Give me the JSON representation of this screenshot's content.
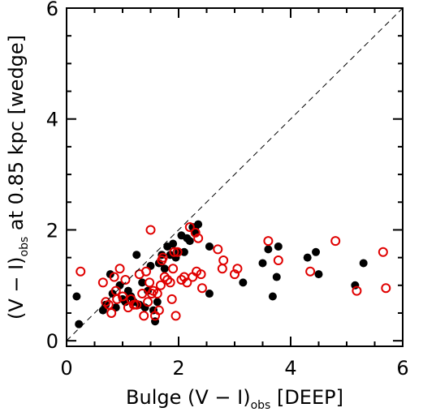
{
  "chart_data": {
    "type": "scatter",
    "xlabel": {
      "pre": "Bulge  (V − I)",
      "sub": "obs",
      "post": "   [DEEP]"
    },
    "ylabel": {
      "pre": "(V − I)",
      "sub": "obs",
      "post": " at 0.85 kpc  [wedge]"
    },
    "xlim": [
      0,
      6
    ],
    "ylim": [
      -0.1,
      6
    ],
    "xticks": [
      0,
      2,
      4,
      6
    ],
    "yticks": [
      0,
      2,
      4,
      6
    ],
    "xtick_labels": [
      "0",
      "2",
      "4",
      "6"
    ],
    "ytick_labels": [
      "0",
      "2",
      "4",
      "6"
    ],
    "reference_line": {
      "style": "dashed",
      "color": "#000000",
      "from": [
        0,
        0
      ],
      "to": [
        6,
        6
      ]
    },
    "grid": false,
    "series": [
      {
        "marker": "filled-circle",
        "color": "#000000",
        "points": [
          [
            0.18,
            0.8
          ],
          [
            0.22,
            0.3
          ],
          [
            0.65,
            0.55
          ],
          [
            0.7,
            0.65
          ],
          [
            0.78,
            1.2
          ],
          [
            0.82,
            0.85
          ],
          [
            0.88,
            0.6
          ],
          [
            0.95,
            1.0
          ],
          [
            1.0,
            0.75
          ],
          [
            1.05,
            0.7
          ],
          [
            1.1,
            0.9
          ],
          [
            1.15,
            0.8
          ],
          [
            1.2,
            0.7
          ],
          [
            1.25,
            1.55
          ],
          [
            1.3,
            0.65
          ],
          [
            1.35,
            1.05
          ],
          [
            1.4,
            0.6
          ],
          [
            1.45,
            0.9
          ],
          [
            1.5,
            1.35
          ],
          [
            1.55,
            0.55
          ],
          [
            1.58,
            0.35
          ],
          [
            1.62,
            0.7
          ],
          [
            1.65,
            1.4
          ],
          [
            1.7,
            1.55
          ],
          [
            1.75,
            1.3
          ],
          [
            1.8,
            1.7
          ],
          [
            1.85,
            1.55
          ],
          [
            1.9,
            1.75
          ],
          [
            1.95,
            1.5
          ],
          [
            2.0,
            1.6
          ],
          [
            2.05,
            1.9
          ],
          [
            2.1,
            1.6
          ],
          [
            2.15,
            1.85
          ],
          [
            2.2,
            1.8
          ],
          [
            2.25,
            2.05
          ],
          [
            2.3,
            2.05
          ],
          [
            2.35,
            2.1
          ],
          [
            2.3,
            1.95
          ],
          [
            2.55,
            1.7
          ],
          [
            2.55,
            0.85
          ],
          [
            3.15,
            1.05
          ],
          [
            3.5,
            1.4
          ],
          [
            3.6,
            1.65
          ],
          [
            3.68,
            0.8
          ],
          [
            3.75,
            1.15
          ],
          [
            3.78,
            1.7
          ],
          [
            4.3,
            1.5
          ],
          [
            4.45,
            1.6
          ],
          [
            4.5,
            1.2
          ],
          [
            5.15,
            1.0
          ],
          [
            5.3,
            1.4
          ]
        ]
      },
      {
        "marker": "open-circle",
        "color": "#e00000",
        "points": [
          [
            0.25,
            1.25
          ],
          [
            0.65,
            1.05
          ],
          [
            0.7,
            0.7
          ],
          [
            0.75,
            0.65
          ],
          [
            0.8,
            0.5
          ],
          [
            0.85,
            1.15
          ],
          [
            0.88,
            0.9
          ],
          [
            0.9,
            0.75
          ],
          [
            0.95,
            1.3
          ],
          [
            1.0,
            0.8
          ],
          [
            1.05,
            1.1
          ],
          [
            1.1,
            0.6
          ],
          [
            1.15,
            0.75
          ],
          [
            1.2,
            0.65
          ],
          [
            1.25,
            0.65
          ],
          [
            1.3,
            1.2
          ],
          [
            1.35,
            0.85
          ],
          [
            1.38,
            0.45
          ],
          [
            1.42,
            1.25
          ],
          [
            1.45,
            0.7
          ],
          [
            1.48,
            1.05
          ],
          [
            1.5,
            2.0
          ],
          [
            1.52,
            0.85
          ],
          [
            1.55,
            0.9
          ],
          [
            1.58,
            0.45
          ],
          [
            1.62,
            0.85
          ],
          [
            1.65,
            0.55
          ],
          [
            1.68,
            1.0
          ],
          [
            1.7,
            1.45
          ],
          [
            1.72,
            1.5
          ],
          [
            1.75,
            1.15
          ],
          [
            1.8,
            1.1
          ],
          [
            1.85,
            1.05
          ],
          [
            1.88,
            0.75
          ],
          [
            1.9,
            1.3
          ],
          [
            1.92,
            1.6
          ],
          [
            1.95,
            0.45
          ],
          [
            1.98,
            1.6
          ],
          [
            2.05,
            1.1
          ],
          [
            2.1,
            1.15
          ],
          [
            2.15,
            1.05
          ],
          [
            2.2,
            2.05
          ],
          [
            2.25,
            1.15
          ],
          [
            2.3,
            1.95
          ],
          [
            2.32,
            1.25
          ],
          [
            2.35,
            1.85
          ],
          [
            2.4,
            1.2
          ],
          [
            2.42,
            0.95
          ],
          [
            2.7,
            1.65
          ],
          [
            2.78,
            1.3
          ],
          [
            2.8,
            1.45
          ],
          [
            3.0,
            1.2
          ],
          [
            3.05,
            1.3
          ],
          [
            3.6,
            1.8
          ],
          [
            3.78,
            1.45
          ],
          [
            4.35,
            1.25
          ],
          [
            4.8,
            1.8
          ],
          [
            5.18,
            0.9
          ],
          [
            5.65,
            1.6
          ],
          [
            5.7,
            0.95
          ]
        ]
      }
    ]
  }
}
